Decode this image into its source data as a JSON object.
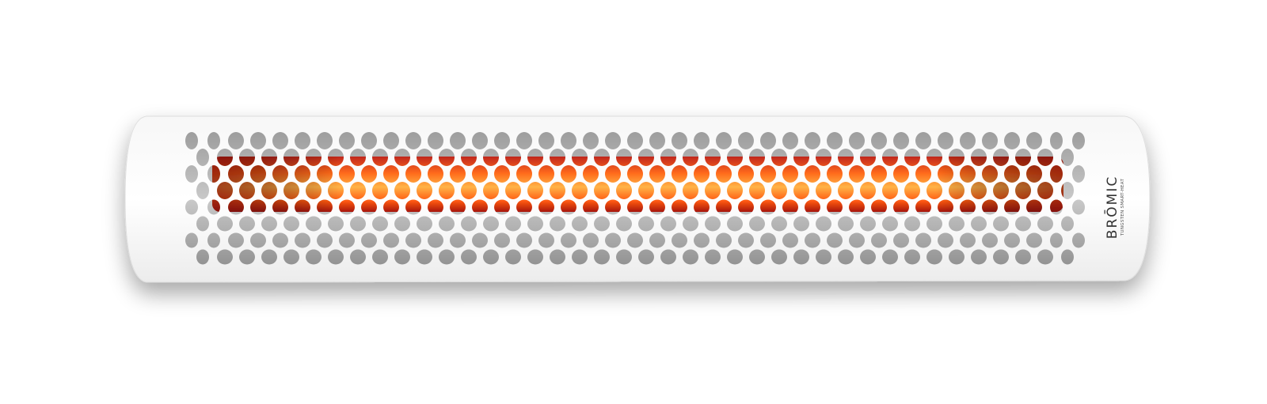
{
  "logo": {
    "brand": "BRŌMIC",
    "tagline": "TUNGSTEN SMART-HEAT"
  }
}
